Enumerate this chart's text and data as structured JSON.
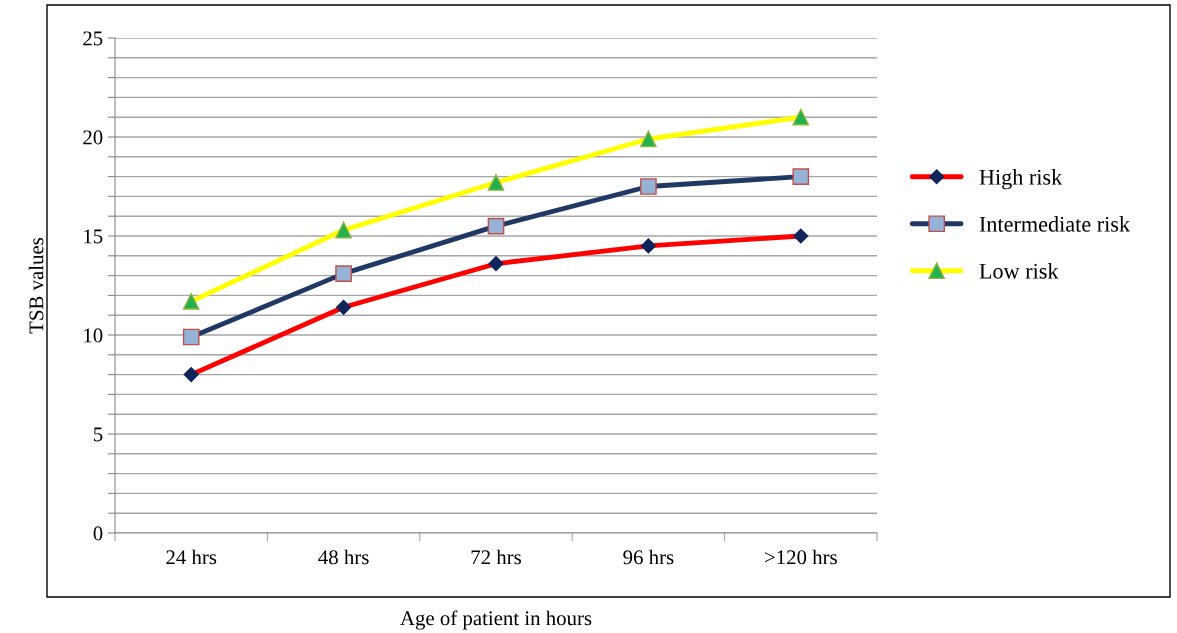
{
  "chart_data": {
    "type": "line",
    "xlabel": "Age of patient in hours",
    "ylabel": "TSB values",
    "categories": [
      "24 hrs",
      "48 hrs",
      "72 hrs",
      "96 hrs",
      ">120 hrs"
    ],
    "series": [
      {
        "name": "High risk",
        "color": "#ff0000",
        "marker": "diamond",
        "values": [
          8.0,
          11.4,
          13.6,
          14.5,
          15.0
        ]
      },
      {
        "name": "Intermediate risk",
        "color": "#1f3864",
        "marker": "square",
        "values": [
          9.9,
          13.1,
          15.5,
          17.5,
          18.0
        ]
      },
      {
        "name": "Low risk",
        "color": "#ffff00",
        "marker": "triangle",
        "values": [
          11.7,
          15.3,
          17.7,
          19.9,
          21.0
        ]
      }
    ],
    "ylim": [
      0,
      25
    ],
    "yticks": [
      0,
      {
        "value": 1,
        "label": null
      },
      {
        "value": 2,
        "label": null
      },
      {
        "value": 3,
        "label": null
      },
      {
        "value": 4,
        "label": null
      },
      5,
      {
        "value": 6,
        "label": null
      },
      {
        "value": 7,
        "label": null
      },
      {
        "value": 8,
        "label": null
      },
      {
        "value": 9,
        "label": null
      },
      10,
      {
        "value": 11,
        "label": null
      },
      {
        "value": 12,
        "label": null
      },
      {
        "value": 13,
        "label": null
      },
      {
        "value": 14,
        "label": null
      },
      15,
      {
        "value": 16,
        "label": null
      },
      {
        "value": 17,
        "label": null
      },
      {
        "value": 18,
        "label": null
      },
      {
        "value": 19,
        "label": null
      },
      20,
      {
        "value": 21,
        "label": null
      },
      {
        "value": 22,
        "label": null
      },
      {
        "value": 23,
        "label": null
      },
      {
        "value": 24,
        "label": null
      },
      25
    ],
    "grid": "y",
    "legend": "right",
    "line_style": "solid"
  }
}
